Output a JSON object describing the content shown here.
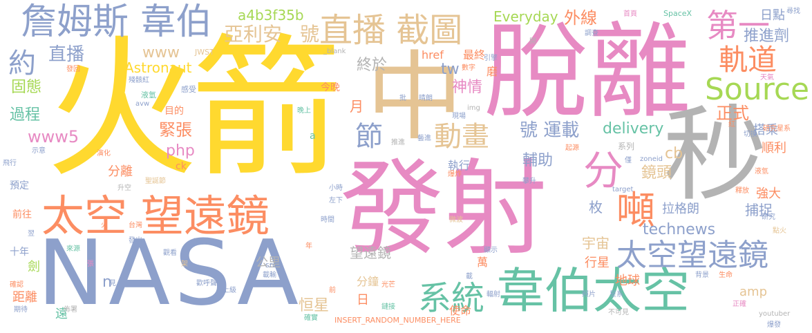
{
  "palette": {
    "pink": "#e78ac3",
    "orange": "#fc8d62",
    "green": "#66c2a5",
    "blue": "#8da0cb",
    "yellow": "#ffd92f",
    "lime": "#a6d854",
    "tan": "#e5c494",
    "gray": "#b3b3b3"
  },
  "words": {
    "huojian": "火箭",
    "fashe": "發射",
    "tuoli": "脫離",
    "nasa": "NASA",
    "zhong": "中",
    "miao": "秒",
    "taikong_wangyuanjing": "太空 望遠鏡",
    "weibo_taikong": "韋伯太空",
    "zhanmusi_weibo": "詹姆斯 韋伯",
    "zhibo_jietu": "直播 截圖",
    "taikongwangyuanjing": "太空望遠鏡",
    "xitong": "系統",
    "source": "Source",
    "guidao": "軌道",
    "dun": "噸",
    "fen_big": "分",
    "dongua": "動畫",
    "diyi": "第一",
    "yue": "約",
    "jie": "節",
    "yaliyan": "亞利安",
    "hao1": "號",
    "a4b3f35b": "a4b3f35b",
    "everyday": "Everyday",
    "waixian": "外線",
    "tuijinji": "推進劑",
    "rishu": "日點",
    "zhibo_small": "直播",
    "www": "www",
    "guotai": "固態",
    "guocheng": "過程",
    "www5": "www5",
    "astronaut": "Astronaut",
    "jinzhang": "緊張",
    "php": "php",
    "fenli": "分離",
    "yuding": "預定",
    "qianwang": "前往",
    "shinian": "十年",
    "jian": "劍",
    "juli": "距離",
    "yuan": "遠",
    "hengxing": "恒星",
    "zhongyu": "終於",
    "tw": "tw",
    "shenqing": "神情",
    "yue2": "月",
    "jinwan": "今晚",
    "hao_yunzai": "號 運載",
    "delivery": "delivery",
    "fuzhu": "輔助",
    "zhengshi": "正式",
    "technews": "technews",
    "cb": "cb",
    "jingtou": "鏡頭",
    "meiyou": "枚",
    "yuzhou": "宇宙",
    "lagelang": "拉格朗",
    "buzhuo": "捕捉",
    "qiangda": "強大",
    "dazai": "搭乘",
    "shunli": "順利",
    "xingxing": "行星",
    "diqiu": "地球",
    "amp": "amp",
    "wangyuanjing_small": "望遠鏡",
    "gongli": "公里",
    "fenzhong": "分鐘",
    "ri": "日",
    "zhixing": "執行",
    "shiming": "使命",
    "wan": "萬",
    "zuizhong": "最終",
    "href": "href",
    "mo": "磨",
    "mudi": "目的",
    "ck": "ck",
    "ganshou": "感受",
    "yeqing": "液氫",
    "jwst": "JWST",
    "blank": "_blank",
    "insert": "INSERT_RANDOM_NUMBER_HERE",
    "spacex": "SpaceX",
    "img": "img",
    "avw": "avw",
    "a": "a",
    "src": "src",
    "target": "target",
    "youtuber": "youtuber",
    "zoneid": "zoneid",
    "n": "n",
    "shouye": "首頁",
    "xunzhao": "尋找",
    "diaocha": "調查",
    "kaiqi": "開",
    "yinqing": "引擎",
    "shuzi": "數字",
    "pi": "批",
    "qinglang": "晴朗",
    "xianchang": "現場",
    "tuijin": "推進",
    "xiannong": "藝進",
    "wanshang": "晚上",
    "xiaoshi": "小時",
    "zuoxia": "左下",
    "shengkong": "升空",
    "shengkong2": "聖誕節",
    "baozha": "爆炸",
    "panzheng": "攀升",
    "qiyuan": "起源",
    "xilie": "系列",
    "jin": "僅",
    "shifang": "釋放",
    "dianhuo": "點火",
    "yanjiu": "研究",
    "yanjiushi": "研究星系",
    "qiedang": "切換",
    "hong": "紅",
    "tianqi": "天氣",
    "ye_qing2": "液氫",
    "zhengque": "正確",
    "shengming": "生命",
    "buke_jian": "不可見",
    "baofa": "爆發",
    "xingxi": "星系",
    "zhaopian": "照片",
    "beijing": "背景",
    "jiaocai": "教材",
    "zhoukan": "週刊",
    "fushe": "輻射",
    "weibo_small": "微波",
    "guangzhi": "光芒",
    "queshi": "確實",
    "qidai": "期待",
    "fengxian": "佈署",
    "huanhu": "歡呼聲",
    "shangji": "上級",
    "laiyuan": "來源",
    "guankan": "觀看",
    "shunjian": "順觀",
    "jia": "架",
    "fachu": "發出",
    "shijian": "時間",
    "taiwan": "台灣",
    "huo": "火",
    "yiren": "翌",
    "feixing": "飛行",
    "shiyi": "示意",
    "yanhua": "演化",
    "jieshu": "殘骸紅",
    "fahui": "發回",
    "zai": "載",
    "que": "確認",
    "zhang": "張",
    "jian2": "見",
    "nian": "年",
    "zaizao": "載輸",
    "yiyang": "嚴",
    "xianshi": "顯示",
    "gai": "蓋",
    "jiesan": "鏈接",
    "jiaoyu": "教",
    "qian": "前"
  }
}
